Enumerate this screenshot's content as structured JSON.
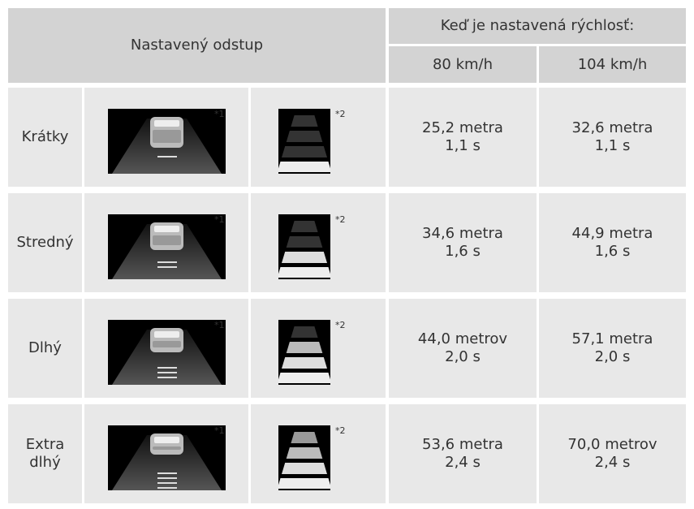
{
  "table": {
    "header": {
      "setting": "Nastavený odstup",
      "speed": "Keď je nastavená rýchlosť:",
      "col1": "80 km/h",
      "col2": "104 km/h"
    },
    "rows": [
      {
        "label": "Krátky",
        "note1": "*1",
        "note2": "*2",
        "col1": [
          "25,2 metra",
          "1,1 s"
        ],
        "col2": [
          "32,6 metra",
          "1,1 s"
        ]
      },
      {
        "label": "Stredný",
        "note1": "*1",
        "note2": "*2",
        "col1": [
          "34,6 metra",
          "1,6 s"
        ],
        "col2": [
          "44,9 metra",
          "1,6 s"
        ]
      },
      {
        "label": "Dlhý",
        "note1": "*1",
        "note2": "*2",
        "col1": [
          "44,0 metrov",
          "2,0 s"
        ],
        "col2": [
          "57,1 metra",
          "2,0 s"
        ]
      },
      {
        "label": "Extra dlhý",
        "note1": "*1",
        "note2": "*2",
        "col1": [
          "53,6 metra",
          "2,4 s"
        ],
        "col2": [
          "70,0 metrov",
          "2,4 s"
        ]
      }
    ]
  }
}
